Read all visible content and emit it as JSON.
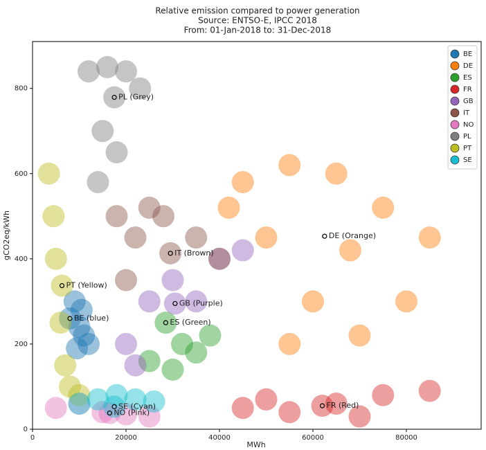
{
  "chart_data": {
    "type": "scatter",
    "title": [
      "Relative emission compared to power generation",
      "Source: ENTSO-E, IPCC 2018",
      "From: 01-Jan-2018 to: 31-Dec-2018"
    ],
    "x_label": "MWh",
    "y_label": "gCO2eq/kWh",
    "xlim": [
      0,
      96000
    ],
    "xticks": [
      0,
      20000,
      40000,
      60000,
      80000
    ],
    "ylim": [
      0,
      910
    ],
    "yticks": [
      0,
      200,
      400,
      600,
      800
    ],
    "legend": "upper right",
    "series": [
      {
        "name": "BE",
        "color": "#1f77b4",
        "x": [
          8000,
          9000,
          10000,
          11000,
          12000,
          9500,
          10500
        ],
        "y": [
          260,
          300,
          240,
          220,
          200,
          190,
          280
        ],
        "annotation": {
          "text": "BE (blue)",
          "x": 8000,
          "y": 260
        }
      },
      {
        "name": "DE",
        "color": "#ff7f0e",
        "x": [
          45000,
          55000,
          65000,
          75000,
          85000,
          80000,
          70000,
          60000,
          50000,
          55000,
          42000,
          68000
        ],
        "y": [
          580,
          620,
          600,
          520,
          450,
          300,
          220,
          300,
          450,
          200,
          520,
          420
        ],
        "annotation": {
          "text": "DE (Orange)",
          "x": 62500,
          "y": 453
        }
      },
      {
        "name": "ES",
        "color": "#2ca02c",
        "x": [
          25000,
          30000,
          35000,
          38000,
          28500,
          32000
        ],
        "y": [
          160,
          140,
          180,
          220,
          250,
          200
        ],
        "annotation": {
          "text": "ES (Green)",
          "x": 28500,
          "y": 250
        }
      },
      {
        "name": "FR",
        "color": "#d62728",
        "x": [
          45000,
          55000,
          65000,
          75000,
          85000,
          62000,
          50000,
          70000
        ],
        "y": [
          50,
          40,
          60,
          80,
          90,
          55,
          70,
          30
        ],
        "annotation": {
          "text": "FR (Red)",
          "x": 62000,
          "y": 55
        }
      },
      {
        "name": "GB",
        "color": "#9467bd",
        "x": [
          20000,
          25000,
          30000,
          35000,
          40000,
          45000,
          30500,
          22000
        ],
        "y": [
          200,
          300,
          350,
          300,
          400,
          420,
          295,
          150
        ],
        "annotation": {
          "text": "GB (Purple)",
          "x": 30500,
          "y": 295
        }
      },
      {
        "name": "IT",
        "color": "#8c564b",
        "x": [
          18000,
          22000,
          28000,
          35000,
          40000,
          29500,
          20000,
          25000
        ],
        "y": [
          500,
          450,
          500,
          450,
          400,
          413,
          350,
          520
        ],
        "annotation": {
          "text": "IT (Brown)",
          "x": 29500,
          "y": 413
        }
      },
      {
        "name": "NO",
        "color": "#e377c2",
        "x": [
          5000,
          10000,
          15000,
          20000,
          25000,
          16500
        ],
        "y": [
          50,
          60,
          40,
          35,
          30,
          38
        ],
        "annotation": {
          "text": "NO (Pink)",
          "x": 16500,
          "y": 38
        }
      },
      {
        "name": "PL",
        "color": "#7f7f7f",
        "x": [
          12000,
          16000,
          20000,
          23000,
          15000,
          18000,
          14000,
          17500
        ],
        "y": [
          840,
          850,
          840,
          800,
          700,
          650,
          580,
          779
        ],
        "annotation": {
          "text": "PL (Grey)",
          "x": 17500,
          "y": 779
        }
      },
      {
        "name": "PT",
        "color": "#bcbd22",
        "x": [
          3500,
          4500,
          5000,
          6300,
          6000,
          7000,
          8000,
          10000
        ],
        "y": [
          600,
          500,
          400,
          337,
          250,
          150,
          100,
          80
        ],
        "annotation": {
          "text": "PT (Yellow)",
          "x": 6300,
          "y": 337
        }
      },
      {
        "name": "SE",
        "color": "#17becf",
        "x": [
          10000,
          14000,
          18000,
          22000,
          26000,
          17500
        ],
        "y": [
          60,
          70,
          80,
          70,
          65,
          53
        ],
        "annotation": {
          "text": "SE (Cyan)",
          "x": 17500,
          "y": 53
        }
      }
    ]
  }
}
